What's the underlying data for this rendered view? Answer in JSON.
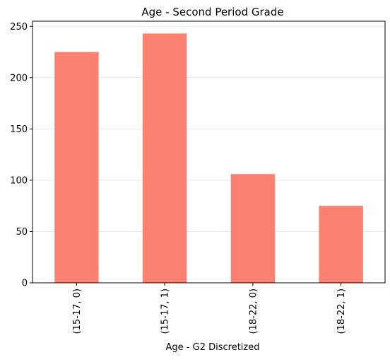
{
  "chart_data": {
    "type": "bar",
    "title": "Age - Second Period Grade",
    "xlabel": "Age - G2 Discretized",
    "ylabel": "",
    "categories": [
      "(15-17, 0)",
      "(15-17, 1)",
      "(18-22, 0)",
      "(18-22, 1)"
    ],
    "values": [
      225,
      243,
      106,
      75
    ],
    "ylim": [
      0,
      255
    ],
    "yticks": [
      0,
      50,
      100,
      150,
      200,
      250
    ],
    "grid": "horizontal",
    "legend": "none",
    "bar_color": "#fa8072",
    "grid_color": "#e6e6e6"
  }
}
